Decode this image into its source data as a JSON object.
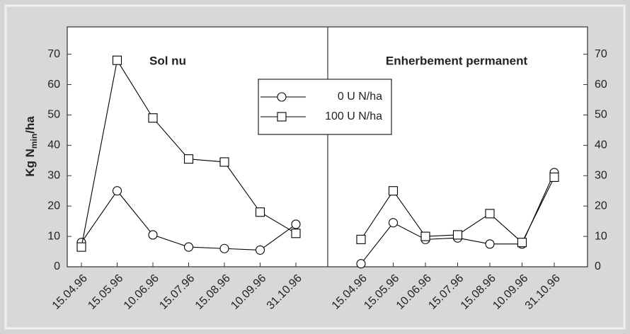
{
  "chart_data": [
    {
      "type": "line",
      "title": "Sol nu",
      "y_label": {
        "main": "Kg N",
        "sub": "min",
        "unit": "/ha"
      },
      "categories": [
        "15.04.96",
        "15.05.96",
        "10.06.96",
        "15.07.96",
        "15.08.96",
        "10.09.96",
        "31.10.96"
      ],
      "series": [
        {
          "name": "0 U N/ha",
          "color": "#000000",
          "marker": "circle",
          "values": [
            8,
            25,
            10.5,
            6.5,
            6,
            5.5,
            14
          ]
        },
        {
          "name": "100 U N/ha",
          "color": "#000000",
          "marker": "square",
          "values": [
            6.5,
            68,
            49,
            35.5,
            34.5,
            18,
            11
          ]
        }
      ],
      "ylim": [
        0,
        79
      ],
      "yticks": [
        0,
        10,
        20,
        30,
        40,
        50,
        60,
        70
      ],
      "yaxis_side": "left",
      "legend": true
    },
    {
      "type": "line",
      "title": "Enherbement permanent",
      "categories": [
        "15.04.96",
        "15.05.96",
        "10.06.96",
        "15.07.96",
        "15.08.96",
        "10.09.96",
        "31.10.96"
      ],
      "series": [
        {
          "name": "0 U N/ha",
          "color": "#000000",
          "marker": "circle",
          "values": [
            1,
            14.5,
            9,
            9.5,
            7.5,
            7.5,
            31
          ]
        },
        {
          "name": "100 U N/ha",
          "color": "#000000",
          "marker": "square",
          "values": [
            9,
            25,
            10,
            10.5,
            17.5,
            8,
            29.5
          ]
        }
      ],
      "ylim": [
        0,
        79
      ],
      "yticks": [
        0,
        10,
        20,
        30,
        40,
        50,
        60,
        70
      ],
      "yaxis_side": "right",
      "legend": false
    }
  ]
}
